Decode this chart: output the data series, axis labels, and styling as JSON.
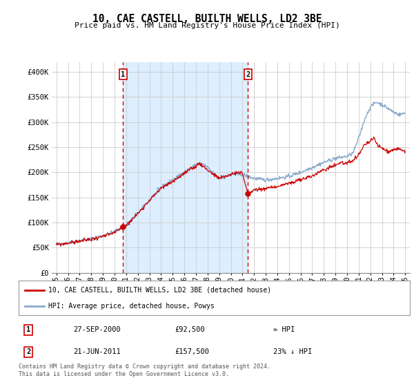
{
  "title": "10, CAE CASTELL, BUILTH WELLS, LD2 3BE",
  "subtitle": "Price paid vs. HM Land Registry's House Price Index (HPI)",
  "background_color": "#ffffff",
  "plot_bg_color": "#ffffff",
  "grid_color": "#cccccc",
  "shade_color": "#ddeeff",
  "line_color_red": "#cc0000",
  "line_color_blue": "#88aacc",
  "sale1": {
    "year_float": 2000.74,
    "price": 92500,
    "label": "1"
  },
  "sale2": {
    "year_float": 2011.47,
    "price": 157500,
    "label": "2"
  },
  "ylim": [
    0,
    420000
  ],
  "xlim_start": 1994.6,
  "xlim_end": 2025.4,
  "yticks": [
    0,
    50000,
    100000,
    150000,
    200000,
    250000,
    300000,
    350000,
    400000
  ],
  "ytick_labels": [
    "£0",
    "£50K",
    "£100K",
    "£150K",
    "£200K",
    "£250K",
    "£300K",
    "£350K",
    "£400K"
  ],
  "xticks": [
    1995,
    1996,
    1997,
    1998,
    1999,
    2000,
    2001,
    2002,
    2003,
    2004,
    2005,
    2006,
    2007,
    2008,
    2009,
    2010,
    2011,
    2012,
    2013,
    2014,
    2015,
    2016,
    2017,
    2018,
    2019,
    2020,
    2021,
    2022,
    2023,
    2024,
    2025
  ],
  "xtick_labels": [
    "95",
    "96",
    "97",
    "98",
    "99",
    "00",
    "01",
    "02",
    "03",
    "04",
    "05",
    "06",
    "07",
    "08",
    "09",
    "10",
    "11",
    "12",
    "13",
    "14",
    "15",
    "16",
    "17",
    "18",
    "19",
    "20",
    "21",
    "22",
    "23",
    "24",
    "25"
  ],
  "legend_red_label": "10, CAE CASTELL, BUILTH WELLS, LD2 3BE (detached house)",
  "legend_blue_label": "HPI: Average price, detached house, Powys",
  "footer": "Contains HM Land Registry data © Crown copyright and database right 2024.\nThis data is licensed under the Open Government Licence v3.0.",
  "table_rows": [
    {
      "num": "1",
      "date": "27-SEP-2000",
      "price": "£92,500",
      "note": "≈ HPI"
    },
    {
      "num": "2",
      "date": "21-JUN-2011",
      "price": "£157,500",
      "note": "23% ↓ HPI"
    }
  ]
}
